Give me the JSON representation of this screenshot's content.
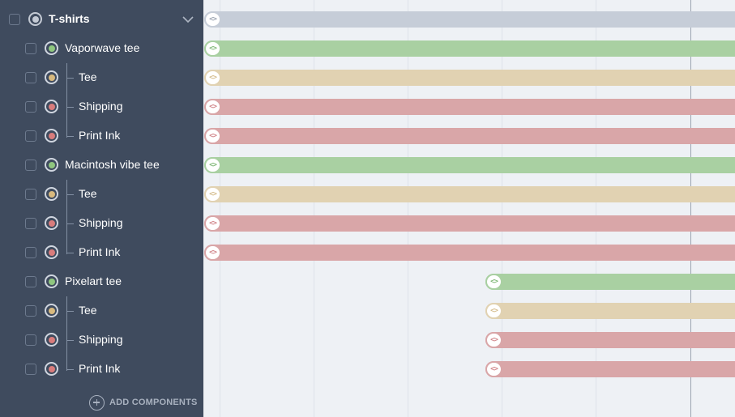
{
  "group": {
    "label": "T-shirts",
    "status_color": "#c4cad4"
  },
  "products": [
    {
      "label": "Vaporwave tee",
      "status": "green",
      "components": [
        {
          "label": "Tee",
          "status": "tan"
        },
        {
          "label": "Shipping",
          "status": "red"
        },
        {
          "label": "Print Ink",
          "status": "red"
        }
      ]
    },
    {
      "label": "Macintosh vibe tee",
      "status": "green",
      "components": [
        {
          "label": "Tee",
          "status": "tan"
        },
        {
          "label": "Shipping",
          "status": "red"
        },
        {
          "label": "Print Ink",
          "status": "red"
        }
      ]
    },
    {
      "label": "Pixelart tee",
      "status": "green",
      "components": [
        {
          "label": "Tee",
          "status": "tan"
        },
        {
          "label": "Shipping",
          "status": "red"
        },
        {
          "label": "Print Ink",
          "status": "red"
        }
      ]
    }
  ],
  "sidebar": {
    "add_components_label": "ADD COMPONENTS"
  },
  "icons": {
    "group_status": "circle-dot-icon",
    "expand": "chevron-down-icon",
    "add": "plus-circle-icon",
    "bar_handle": "drag-handle-icon"
  },
  "colors": {
    "sidebar_bg": "#3f4b5e",
    "timeline_bg": "#eef1f5",
    "green": "#a9d0a2",
    "tan": "#e1d2b2",
    "red": "#d9a6a8",
    "gray": "#c6cdd8"
  }
}
